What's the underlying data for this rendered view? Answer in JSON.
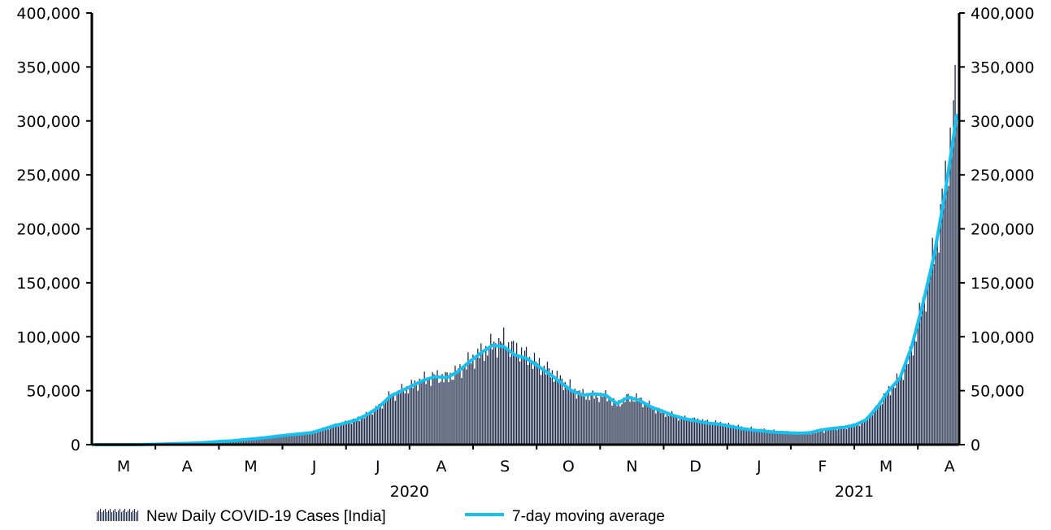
{
  "chart_data": {
    "type": "bar+line",
    "title": "",
    "xlabel": "",
    "ylabel": "",
    "ylim": [
      0,
      400000
    ],
    "y_ticks": [
      "0",
      "50,000",
      "100,000",
      "150,000",
      "200,000",
      "250,000",
      "300,000",
      "350,000",
      "400,000"
    ],
    "y_tick_values": [
      0,
      50000,
      100000,
      150000,
      200000,
      250000,
      300000,
      350000,
      400000
    ],
    "x_months": [
      "M",
      "A",
      "M",
      "J",
      "J",
      "A",
      "S",
      "O",
      "N",
      "D",
      "J",
      "F",
      "M",
      "A"
    ],
    "x_years": [
      "2020",
      "2021"
    ],
    "date_range": [
      "2020-03-01",
      "2021-04-23"
    ],
    "grid": false,
    "legend_position": "bottom",
    "series": [
      {
        "name": "New Daily COVID-19 Cases [India]",
        "type": "bar",
        "color": "#1f2a4a",
        "weekly_values": [
          0,
          0,
          0,
          0,
          100,
          300,
          600,
          900,
          1100,
          1500,
          2200,
          3000,
          3500,
          4500,
          5500,
          6500,
          7800,
          9000,
          10000,
          11000,
          14000,
          17500,
          20000,
          23000,
          28000,
          35000,
          45000,
          50000,
          55000,
          60000,
          63000,
          62000,
          68000,
          77000,
          85000,
          92000,
          96000,
          88000,
          82000,
          75000,
          68000,
          60000,
          52000,
          46000,
          45000,
          45000,
          37000,
          44000,
          42000,
          35000,
          30000,
          27000,
          24000,
          23000,
          21000,
          20000,
          18000,
          16000,
          14500,
          13500,
          12500,
          11500,
          11000,
          10500,
          12000,
          14500,
          16000,
          17500,
          23000,
          35000,
          50000,
          62000,
          85000,
          130000,
          175000,
          240000,
          330000
        ]
      },
      {
        "name": "7-day moving average",
        "type": "line",
        "color": "#17c0ef",
        "weekly_values": [
          0,
          0,
          0,
          0,
          100,
          300,
          600,
          900,
          1100,
          1500,
          2200,
          3000,
          3500,
          4500,
          5500,
          6500,
          7800,
          9000,
          10000,
          11000,
          14000,
          17500,
          20000,
          23000,
          28000,
          35000,
          45000,
          50000,
          55000,
          60000,
          63000,
          62000,
          68000,
          77000,
          85000,
          92000,
          91000,
          83000,
          80000,
          73000,
          66000,
          58000,
          50000,
          46000,
          47000,
          46000,
          38000,
          44000,
          41000,
          35000,
          31000,
          27000,
          24000,
          22000,
          20000,
          19000,
          17000,
          15000,
          13500,
          12500,
          11500,
          11000,
          10500,
          11000,
          13500,
          15000,
          16000,
          18000,
          23000,
          35000,
          50000,
          62000,
          90000,
          130000,
          175000,
          235000,
          305000
        ]
      }
    ]
  },
  "legend": {
    "bars_label": "New Daily COVID-19 Cases [India]",
    "line_label": "7-day moving average"
  }
}
